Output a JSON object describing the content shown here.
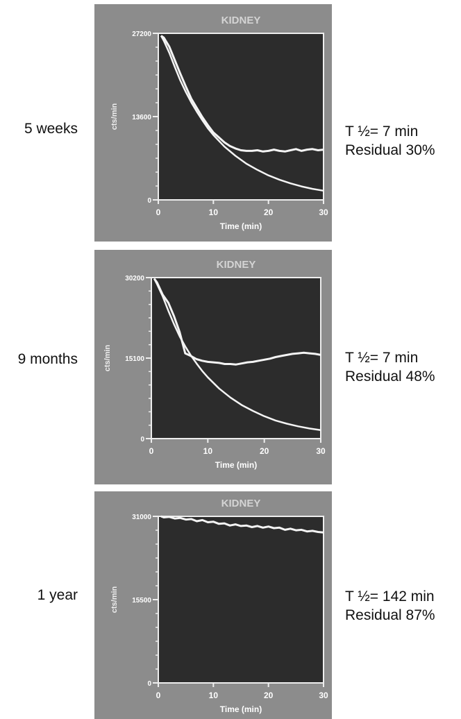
{
  "chart_data": [
    {
      "type": "line",
      "title": "KIDNEY",
      "row_label": "5 weeks",
      "t_half_label": "T ½= 7 min",
      "residual_label": "Residual 30%",
      "xlabel": "Time (min)",
      "ylabel": "cts/min",
      "xlim": [
        0,
        30
      ],
      "ylim": [
        0,
        27200
      ],
      "x_ticks": [
        "0",
        "10",
        "20",
        "30"
      ],
      "y_ticks": [
        "0",
        "13600",
        "27200"
      ],
      "series": [
        {
          "x": [
            0.5,
            1,
            2,
            3,
            4,
            5,
            6,
            7,
            8,
            9,
            10,
            11,
            12,
            13,
            14,
            15,
            16,
            17,
            18,
            19,
            20,
            21,
            22,
            23,
            24,
            25,
            26,
            27,
            28,
            29,
            30
          ],
          "values": [
            26800,
            26500,
            25000,
            22800,
            20600,
            18500,
            16500,
            15000,
            13500,
            12200,
            11000,
            10200,
            9400,
            8800,
            8400,
            8100,
            8000,
            8000,
            8100,
            7900,
            8000,
            8200,
            8000,
            7900,
            8100,
            8300,
            8000,
            8200,
            8300,
            8100,
            8200
          ]
        },
        {
          "x": [
            0.5,
            1,
            2,
            3,
            4,
            5,
            6,
            7,
            8,
            9,
            10,
            12,
            14,
            16,
            18,
            20,
            22,
            24,
            26,
            28,
            30
          ],
          "values": [
            26800,
            26000,
            24000,
            21700,
            19500,
            17600,
            15900,
            14400,
            13000,
            11700,
            10600,
            8700,
            7200,
            5900,
            4900,
            4000,
            3300,
            2700,
            2200,
            1800,
            1500
          ]
        }
      ]
    },
    {
      "type": "line",
      "title": "KIDNEY",
      "row_label": "9 months",
      "t_half_label": "T ½= 7 min",
      "residual_label": "Residual 48%",
      "xlabel": "Time (min)",
      "ylabel": "cts/min",
      "xlim": [
        0,
        30
      ],
      "ylim": [
        0,
        30200
      ],
      "x_ticks": [
        "0",
        "10",
        "20",
        "30"
      ],
      "y_ticks": [
        "0",
        "15100",
        "30200"
      ],
      "series": [
        {
          "x": [
            0.5,
            1,
            2,
            3,
            4,
            5,
            6,
            7,
            8,
            9,
            10,
            11,
            12,
            13,
            14,
            15,
            16,
            17,
            18,
            19,
            20,
            21,
            22,
            23,
            24,
            25,
            26,
            27,
            28,
            29,
            30
          ],
          "values": [
            30000,
            29300,
            27000,
            25500,
            23000,
            20000,
            16000,
            15500,
            14900,
            14600,
            14400,
            14300,
            14200,
            14000,
            14000,
            13900,
            14100,
            14300,
            14400,
            14600,
            14800,
            15000,
            15300,
            15500,
            15700,
            15900,
            16000,
            16100,
            16000,
            15900,
            15700
          ]
        },
        {
          "x": [
            0.5,
            1,
            2,
            3,
            4,
            5,
            6,
            7,
            8,
            9,
            10,
            12,
            14,
            16,
            18,
            20,
            22,
            24,
            26,
            28,
            30
          ],
          "values": [
            30000,
            29000,
            26700,
            24000,
            21500,
            19200,
            17300,
            15600,
            14100,
            12700,
            11500,
            9400,
            7700,
            6300,
            5200,
            4200,
            3400,
            2800,
            2300,
            1900,
            1600
          ]
        }
      ]
    },
    {
      "type": "line",
      "title": "KIDNEY",
      "row_label": "1 year",
      "t_half_label": "T ½= 142 min",
      "residual_label": "Residual 87%",
      "xlabel": "Time (min)",
      "ylabel": "cts/min",
      "xlim": [
        0,
        30
      ],
      "ylim": [
        0,
        31000
      ],
      "x_ticks": [
        "0",
        "10",
        "20",
        "30"
      ],
      "y_ticks": [
        "0",
        "15500",
        "31000"
      ],
      "series": [
        {
          "x": [
            0.5,
            1,
            2,
            3,
            4,
            5,
            6,
            7,
            8,
            9,
            10,
            11,
            12,
            13,
            14,
            15,
            16,
            17,
            18,
            19,
            20,
            21,
            22,
            23,
            24,
            25,
            26,
            27,
            28,
            29,
            30
          ],
          "values": [
            31000,
            30800,
            30900,
            30600,
            30700,
            30400,
            30500,
            30100,
            30300,
            29900,
            30000,
            29600,
            29700,
            29300,
            29500,
            29200,
            29300,
            29000,
            29200,
            28900,
            29100,
            28800,
            28900,
            28500,
            28700,
            28400,
            28500,
            28200,
            28300,
            28100,
            28000
          ]
        }
      ]
    }
  ]
}
